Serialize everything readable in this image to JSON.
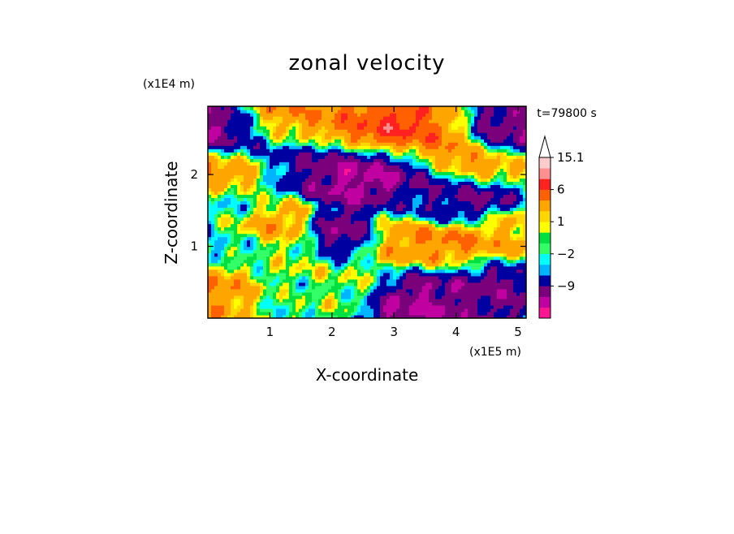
{
  "chart_data": {
    "type": "heatmap",
    "title": "zonal velocity",
    "xlabel": "X-coordinate",
    "ylabel": "Z-coordinate",
    "x_scale_label": "(x1E5 m)",
    "y_scale_label": "(x1E4 m)",
    "time_label": "t=79800 s",
    "xlim": [
      0,
      5.13
    ],
    "ylim": [
      0,
      2.95
    ],
    "x_ticks": [
      1,
      2,
      3,
      4,
      5
    ],
    "y_ticks": [
      1,
      2
    ],
    "x_tick_labels": [
      "1",
      "2",
      "3",
      "4",
      "5"
    ],
    "y_tick_labels": [
      "1",
      "2"
    ],
    "colorbar": {
      "levels": [
        -15,
        -12,
        -9,
        -6,
        -3,
        -2,
        -1,
        0,
        1,
        2,
        3,
        6,
        9,
        12,
        15.1
      ],
      "colors": [
        "#ff1493",
        "#c000a0",
        "#7b007b",
        "#0000a0",
        "#00b4ff",
        "#00ffff",
        "#33ff66",
        "#00e040",
        "#ffff00",
        "#ffd700",
        "#ffa500",
        "#ff6000",
        "#ff2020",
        "#ff9090",
        "#ffcccc"
      ],
      "labels": [
        "15.1",
        "6",
        "1",
        "−2",
        "−9"
      ],
      "label_values": [
        15.1,
        6,
        1,
        -2,
        -9
      ],
      "extend": "max"
    },
    "features": [
      {
        "x": 0.2,
        "z": 2.55,
        "value": -10
      },
      {
        "x": 0.8,
        "z": 2.4,
        "value": -5
      },
      {
        "x": 0.3,
        "z": 2.1,
        "value": 8
      },
      {
        "x": 1.2,
        "z": 2.7,
        "value": 6
      },
      {
        "x": 1.6,
        "z": 2.15,
        "value": -6
      },
      {
        "x": 2.3,
        "z": 2.05,
        "value": -11
      },
      {
        "x": 2.9,
        "z": 2.1,
        "value": -9
      },
      {
        "x": 2.85,
        "z": 2.6,
        "value": 12
      },
      {
        "x": 2.4,
        "z": 2.65,
        "value": 6
      },
      {
        "x": 3.6,
        "z": 2.45,
        "value": 7
      },
      {
        "x": 4.8,
        "z": 2.5,
        "value": -9
      },
      {
        "x": 4.5,
        "z": 2.15,
        "value": 9
      },
      {
        "x": 4.4,
        "z": 1.75,
        "value": -8
      },
      {
        "x": 3.7,
        "z": 1.7,
        "value": -5
      },
      {
        "x": 0.4,
        "z": 1.6,
        "value": -2
      },
      {
        "x": 1.0,
        "z": 1.25,
        "value": 6
      },
      {
        "x": 2.15,
        "z": 1.1,
        "value": -9
      },
      {
        "x": 1.5,
        "z": 0.8,
        "value": 2
      },
      {
        "x": 2.5,
        "z": 0.6,
        "value": 1
      },
      {
        "x": 0.3,
        "z": 0.45,
        "value": 6
      },
      {
        "x": 1.2,
        "z": 0.4,
        "value": -1
      },
      {
        "x": 3.4,
        "z": 0.45,
        "value": -9
      },
      {
        "x": 3.9,
        "z": 0.9,
        "value": 7
      },
      {
        "x": 4.2,
        "z": 0.5,
        "value": -8
      },
      {
        "x": 4.7,
        "z": 0.35,
        "value": -7
      },
      {
        "x": 3.1,
        "z": 1.0,
        "value": 6
      },
      {
        "x": 0.6,
        "z": 0.95,
        "value": -3
      },
      {
        "x": 4.9,
        "z": 1.2,
        "value": 4
      },
      {
        "x": 3.2,
        "z": 0.1,
        "value": -10
      },
      {
        "x": 2.0,
        "z": 0.2,
        "value": 0.5
      }
    ]
  }
}
